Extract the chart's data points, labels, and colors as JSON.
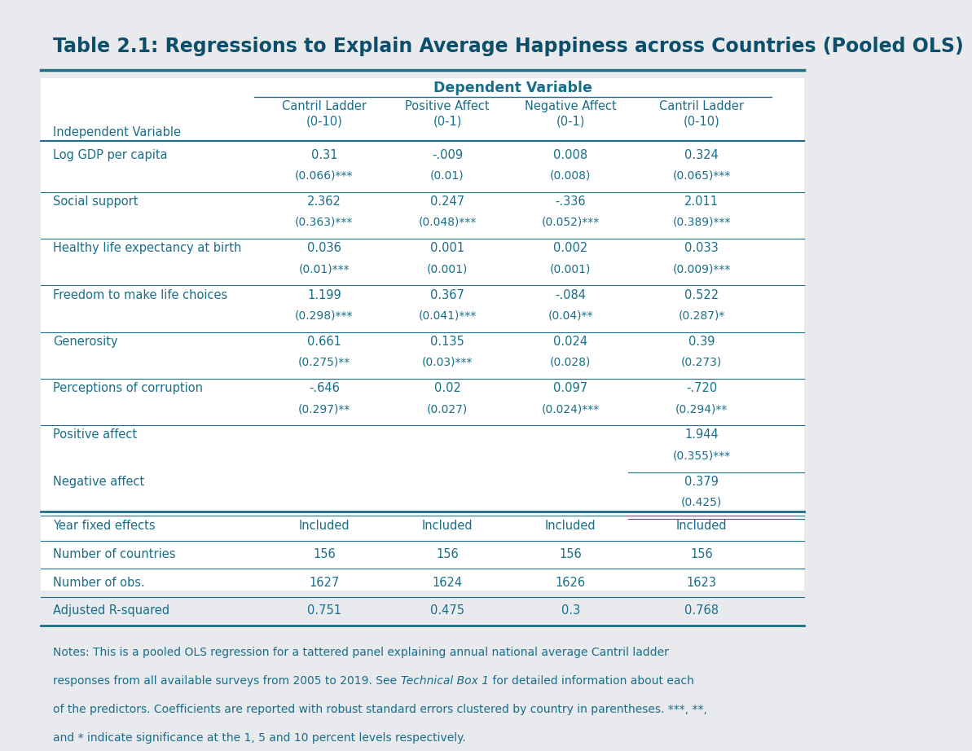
{
  "title": "Table 2.1: Regressions to Explain Average Happiness across Countries (Pooled OLS)",
  "bg_color": "#e8eaed",
  "table_bg": "#ffffff",
  "header_color": "#1a6e8a",
  "text_color": "#1a6e8a",
  "title_color": "#0d4f6b",
  "line_color": "#1a6e8a",
  "col_headers_top": "Dependent Variable",
  "col_headers": [
    "Cantril Ladder\n(0-10)",
    "Positive Affect\n(0-1)",
    "Negative Affect\n(0-1)",
    "Cantril Ladder\n(0-10)"
  ],
  "row_label_header": "Independent Variable",
  "rows": [
    {
      "label": "Log GDP per capita",
      "coefs": [
        "0.31",
        "-.009",
        "0.008",
        "0.324"
      ],
      "ses": [
        "(0.066)***",
        "(0.01)",
        "(0.008)",
        "(0.065)***"
      ]
    },
    {
      "label": "Social support",
      "coefs": [
        "2.362",
        "0.247",
        "-.336",
        "2.011"
      ],
      "ses": [
        "(0.363)***",
        "(0.048)***",
        "(0.052)***",
        "(0.389)***"
      ]
    },
    {
      "label": "Healthy life expectancy at birth",
      "coefs": [
        "0.036",
        "0.001",
        "0.002",
        "0.033"
      ],
      "ses": [
        "(0.01)***",
        "(0.001)",
        "(0.001)",
        "(0.009)***"
      ]
    },
    {
      "label": "Freedom to make life choices",
      "coefs": [
        "1.199",
        "0.367",
        "-.084",
        "0.522"
      ],
      "ses": [
        "(0.298)***",
        "(0.041)***",
        "(0.04)**",
        "(0.287)*"
      ]
    },
    {
      "label": "Generosity",
      "coefs": [
        "0.661",
        "0.135",
        "0.024",
        "0.39"
      ],
      "ses": [
        "(0.275)**",
        "(0.03)***",
        "(0.028)",
        "(0.273)"
      ]
    },
    {
      "label": "Perceptions of corruption",
      "coefs": [
        "-.646",
        "0.02",
        "0.097",
        "-.720"
      ],
      "ses": [
        "(0.297)**",
        "(0.027)",
        "(0.024)***",
        "(0.294)**"
      ]
    },
    {
      "label": "Positive affect",
      "coefs": [
        "",
        "",
        "",
        "1.944"
      ],
      "ses": [
        "",
        "",
        "",
        "(0.355)***"
      ],
      "partial_line": true
    },
    {
      "label": "Negative affect",
      "coefs": [
        "",
        "",
        "",
        "0.379"
      ],
      "ses": [
        "",
        "",
        "",
        "(0.425)"
      ],
      "partial_line": true
    }
  ],
  "footer_rows": [
    {
      "label": "Year fixed effects",
      "values": [
        "Included",
        "Included",
        "Included",
        "Included"
      ]
    },
    {
      "label": "Number of countries",
      "values": [
        "156",
        "156",
        "156",
        "156"
      ]
    },
    {
      "label": "Number of obs.",
      "values": [
        "1627",
        "1624",
        "1626",
        "1623"
      ]
    },
    {
      "label": "Adjusted R-squared",
      "values": [
        "0.751",
        "0.475",
        "0.3",
        "0.768"
      ]
    }
  ],
  "notes_before_italic": "Notes: This is a pooled OLS regression for a tattered panel explaining annual national average Cantril ladder\nresponses from all available surveys from 2005 to 2019. See ",
  "notes_italic": "Technical Box 1",
  "notes_after_italic": " for detailed information about each\nof the predictors. Coefficients are reported with robust standard errors clustered by country in parentheses. ***, **,\nand * indicate significance at the 1, 5 and 10 percent levels respectively."
}
